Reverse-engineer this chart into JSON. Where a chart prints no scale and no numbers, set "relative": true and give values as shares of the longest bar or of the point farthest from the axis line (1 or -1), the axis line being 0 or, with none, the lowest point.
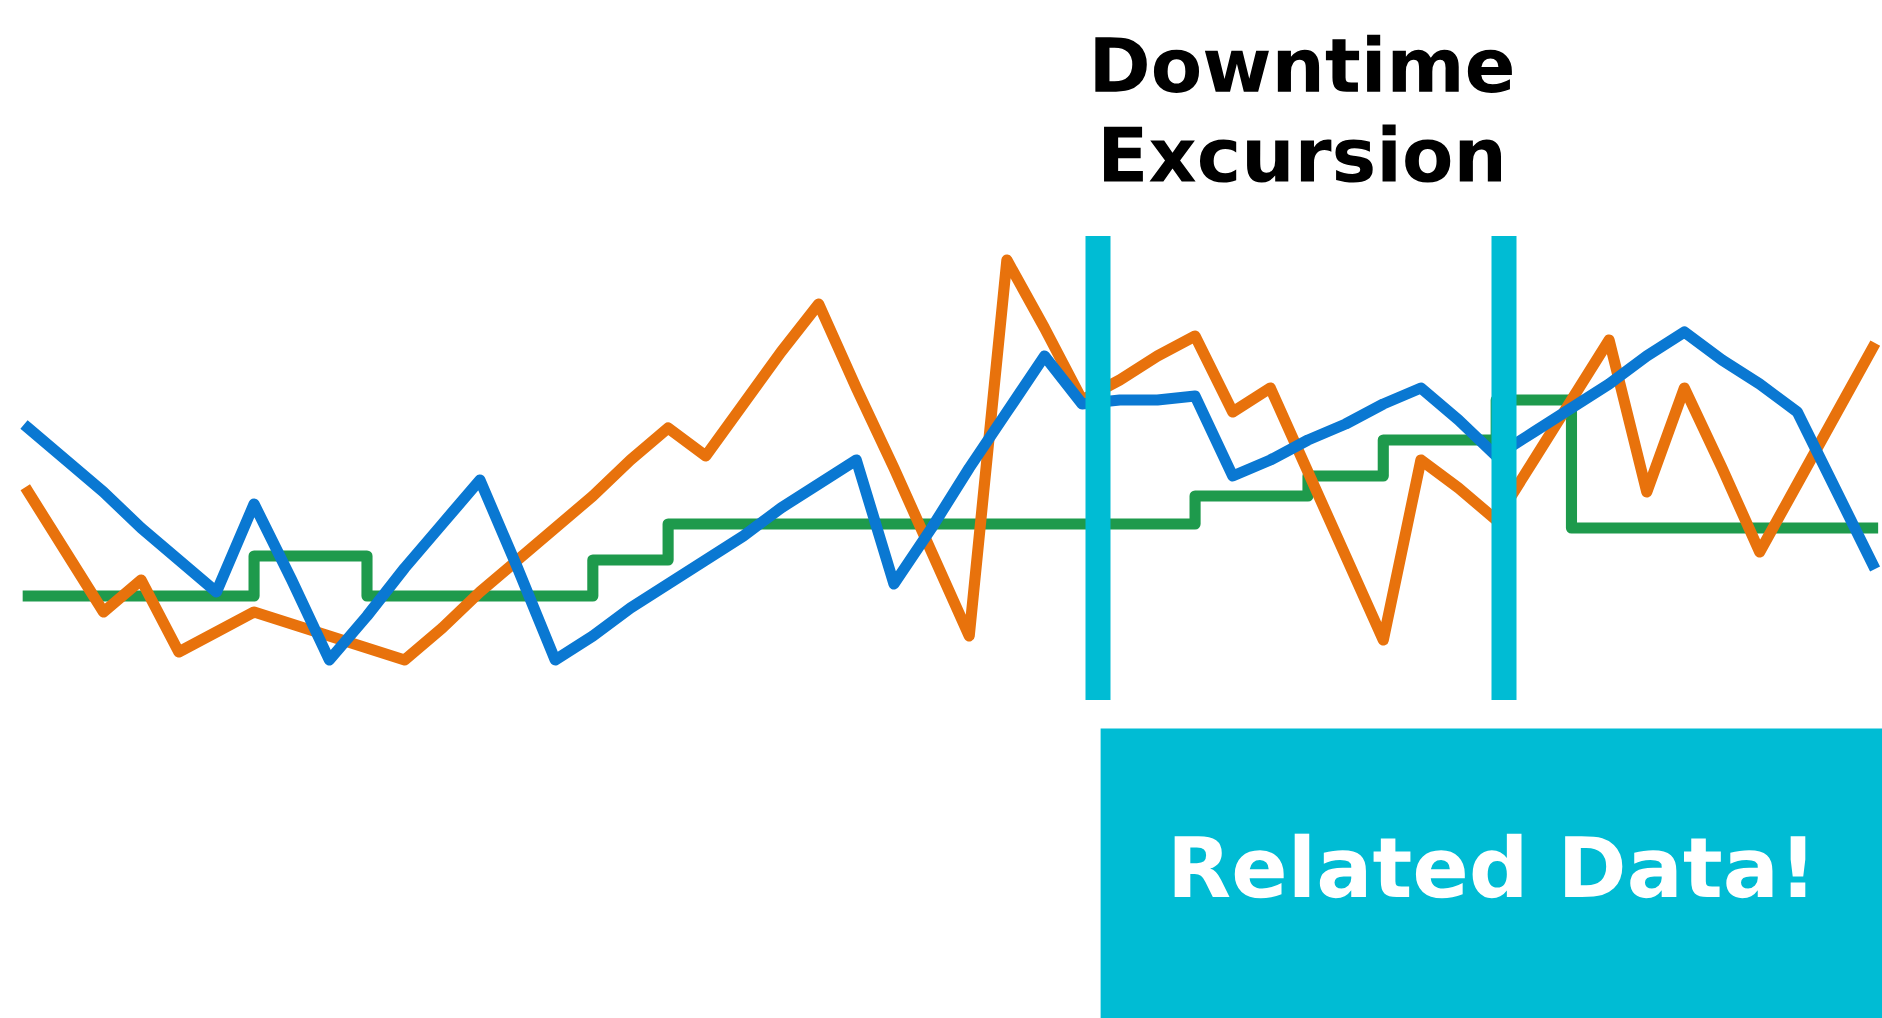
{
  "chart_data": {
    "type": "line",
    "title": "Downtime\nExcursion",
    "relative": true,
    "categories": [
      null,
      null,
      null,
      null,
      null,
      null,
      null,
      null,
      null,
      null,
      null,
      null,
      null,
      null,
      null,
      null,
      null,
      null,
      null,
      null,
      null,
      null,
      null,
      null,
      null,
      null,
      null,
      null,
      null,
      null,
      null,
      null,
      null,
      null,
      null,
      null,
      null,
      null,
      null,
      null,
      null,
      null,
      null,
      null,
      null,
      null,
      null,
      null,
      null,
      null
    ],
    "series": [
      {
        "color": "#e8720c",
        "values": [
          0.42,
          0.27,
          0.12,
          0.2,
          0.02,
          0.07,
          0.12,
          0.09,
          0.06,
          0.03,
          0,
          0.08,
          0.17,
          0.25,
          0.33,
          0.41,
          0.5,
          0.58,
          0.51,
          0.64,
          0.77,
          0.89,
          0.68,
          0.48,
          0.27,
          0.06,
          1,
          0.83,
          0.65,
          0.7,
          0.76,
          0.81,
          0.62,
          0.68,
          0.47,
          0.26,
          0.05,
          0.5,
          0.43,
          0.35,
          0.5,
          0.65,
          0.8,
          0.42,
          0.68,
          0.48,
          0.27,
          0.44,
          0.61,
          0.78
        ]
      },
      {
        "color": "#0a78d2",
        "values": [
          0.58,
          0.5,
          0.42,
          0.33,
          0.25,
          0.17,
          0.39,
          0.2,
          0,
          0.11,
          0.23,
          0.34,
          0.45,
          0.23,
          0,
          0.06,
          0.13,
          0.19,
          0.25,
          0.31,
          0.38,
          0.44,
          0.5,
          0.19,
          0.33,
          0.48,
          0.62,
          0.76,
          0.64,
          0.65,
          0.65,
          0.66,
          0.46,
          0.5,
          0.55,
          0.59,
          0.64,
          0.68,
          0.6,
          0.51,
          0.57,
          0.63,
          0.69,
          0.76,
          0.82,
          0.75,
          0.69,
          0.62,
          0.43,
          0.24
        ]
      },
      {
        "type": "step",
        "color": "#1e9a4c",
        "values": [
          0.16,
          0.16,
          0.16,
          0.16,
          0.16,
          0.16,
          0.26,
          0.26,
          0.26,
          0.16,
          0.16,
          0.16,
          0.16,
          0.16,
          0.16,
          0.25,
          0.25,
          0.34,
          0.34,
          0.34,
          0.34,
          0.34,
          0.34,
          0.34,
          0.34,
          0.34,
          0.34,
          0.34,
          0.34,
          0.34,
          0.34,
          0.41,
          0.41,
          0.41,
          0.46,
          0.46,
          0.55,
          0.55,
          0.55,
          0.65,
          0.65,
          0.33,
          0.33,
          0.33,
          0.33,
          0.33,
          0.33,
          0.33,
          0.33,
          0.33
        ]
      }
    ],
    "annotations": [
      "Related Data!"
    ],
    "marker": "none",
    "line_style": "solid",
    "legend": false
  }
}
